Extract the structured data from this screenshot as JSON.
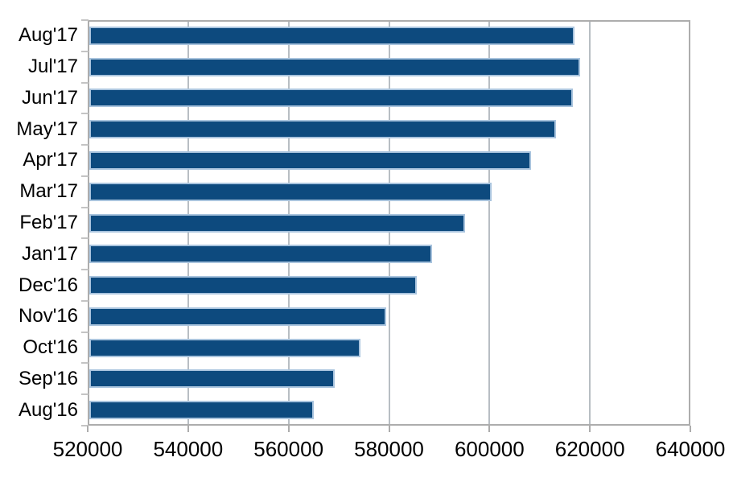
{
  "chart_data": {
    "type": "bar",
    "orientation": "horizontal",
    "title": "",
    "xlabel": "",
    "ylabel": "",
    "categories": [
      "Aug'17",
      "Jul'17",
      "Jun'17",
      "May'17",
      "Apr'17",
      "Mar'17",
      "Feb'17",
      "Jan'17",
      "Dec'16",
      "Nov'16",
      "Oct'16",
      "Sep'16",
      "Aug'16"
    ],
    "values": [
      617000,
      618000,
      616600,
      613300,
      608300,
      600400,
      595200,
      588500,
      585600,
      579500,
      574300,
      569200,
      565100
    ],
    "xlim": [
      520000,
      640000
    ],
    "x_ticks": [
      520000,
      540000,
      560000,
      580000,
      600000,
      620000,
      640000
    ],
    "x_tick_labels": [
      "520000",
      "540000",
      "560000",
      "580000",
      "600000",
      "620000",
      "640000"
    ],
    "grid": "vertical",
    "legend": "none",
    "colors": {
      "bar_fill": "#0d4a7e",
      "bar_border": "#a9c4de",
      "gridline": "#b8bec3",
      "axis": "#adadad",
      "tick": "#c4c4c4",
      "text": "#000000",
      "background": "#ffffff"
    }
  }
}
